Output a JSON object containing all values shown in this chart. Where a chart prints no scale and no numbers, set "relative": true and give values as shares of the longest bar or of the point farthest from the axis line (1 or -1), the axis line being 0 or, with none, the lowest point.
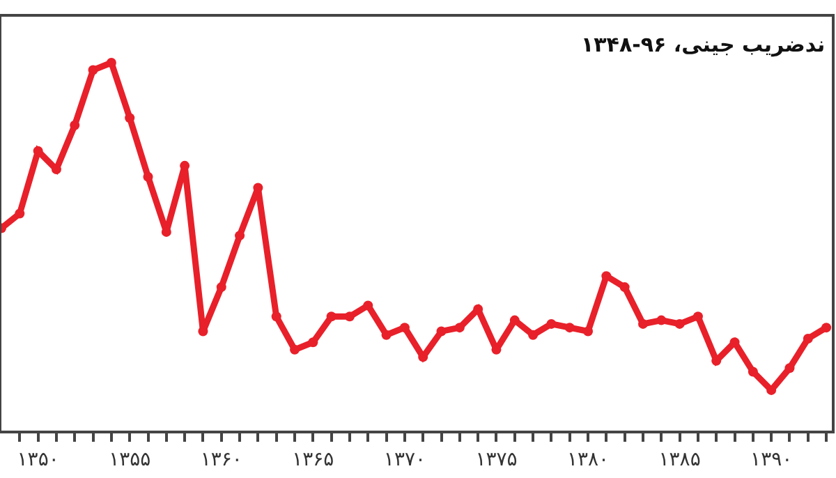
{
  "chart_data": {
    "type": "line",
    "title": "ندضریب جینی، ۹۶-۱۳۴۸",
    "relative": true,
    "x": [
      1348,
      1349,
      1350,
      1351,
      1352,
      1353,
      1354,
      1355,
      1356,
      1357,
      1358,
      1359,
      1360,
      1361,
      1362,
      1363,
      1364,
      1365,
      1366,
      1367,
      1368,
      1369,
      1370,
      1371,
      1372,
      1373,
      1374,
      1375,
      1376,
      1377,
      1378,
      1379,
      1380,
      1381,
      1382,
      1383,
      1384,
      1385,
      1386,
      1387,
      1388,
      1389,
      1390,
      1391,
      1392,
      1393
    ],
    "series": [
      {
        "color": "#e8202a",
        "values": [
          0.55,
          0.59,
          0.76,
          0.71,
          0.83,
          0.98,
          1.0,
          0.85,
          0.69,
          0.54,
          0.72,
          0.27,
          0.39,
          0.53,
          0.66,
          0.31,
          0.22,
          0.24,
          0.31,
          0.31,
          0.34,
          0.26,
          0.28,
          0.2,
          0.27,
          0.28,
          0.33,
          0.22,
          0.3,
          0.26,
          0.29,
          0.28,
          0.27,
          0.42,
          0.39,
          0.29,
          0.3,
          0.29,
          0.31,
          0.19,
          0.24,
          0.16,
          0.11,
          0.17,
          0.25,
          0.28
        ]
      }
    ],
    "xlim": [
      1348,
      1393.3
    ],
    "xticks": [
      {
        "value": 1349,
        "label": null
      },
      {
        "value": 1350,
        "label": "۱۳۵۰"
      },
      {
        "value": 1351,
        "label": null
      },
      {
        "value": 1352,
        "label": null
      },
      {
        "value": 1353,
        "label": null
      },
      {
        "value": 1354,
        "label": null
      },
      {
        "value": 1355,
        "label": "۱۳۵۵"
      },
      {
        "value": 1356,
        "label": null
      },
      {
        "value": 1357,
        "label": null
      },
      {
        "value": 1358,
        "label": null
      },
      {
        "value": 1359,
        "label": null
      },
      {
        "value": 1360,
        "label": "۱۳۶۰"
      },
      {
        "value": 1361,
        "label": null
      },
      {
        "value": 1362,
        "label": null
      },
      {
        "value": 1363,
        "label": null
      },
      {
        "value": 1364,
        "label": null
      },
      {
        "value": 1365,
        "label": "۱۳۶۵"
      },
      {
        "value": 1366,
        "label": null
      },
      {
        "value": 1367,
        "label": null
      },
      {
        "value": 1368,
        "label": null
      },
      {
        "value": 1369,
        "label": null
      },
      {
        "value": 1370,
        "label": "۱۳۷۰"
      },
      {
        "value": 1371,
        "label": null
      },
      {
        "value": 1372,
        "label": null
      },
      {
        "value": 1373,
        "label": null
      },
      {
        "value": 1374,
        "label": null
      },
      {
        "value": 1375,
        "label": "۱۳۷۵"
      },
      {
        "value": 1376,
        "label": null
      },
      {
        "value": 1377,
        "label": null
      },
      {
        "value": 1378,
        "label": null
      },
      {
        "value": 1379,
        "label": null
      },
      {
        "value": 1380,
        "label": "۱۳۸۰"
      },
      {
        "value": 1381,
        "label": null
      },
      {
        "value": 1382,
        "label": null
      },
      {
        "value": 1383,
        "label": null
      },
      {
        "value": 1384,
        "label": null
      },
      {
        "value": 1385,
        "label": "۱۳۸۵"
      },
      {
        "value": 1386,
        "label": null
      },
      {
        "value": 1387,
        "label": null
      },
      {
        "value": 1388,
        "label": null
      },
      {
        "value": 1389,
        "label": null
      },
      {
        "value": 1390,
        "label": "۱۳۹۰"
      },
      {
        "value": 1391,
        "label": null
      },
      {
        "value": 1392,
        "label": null
      },
      {
        "value": 1393,
        "label": null
      }
    ],
    "marker": "circle",
    "line_style": "solid"
  }
}
